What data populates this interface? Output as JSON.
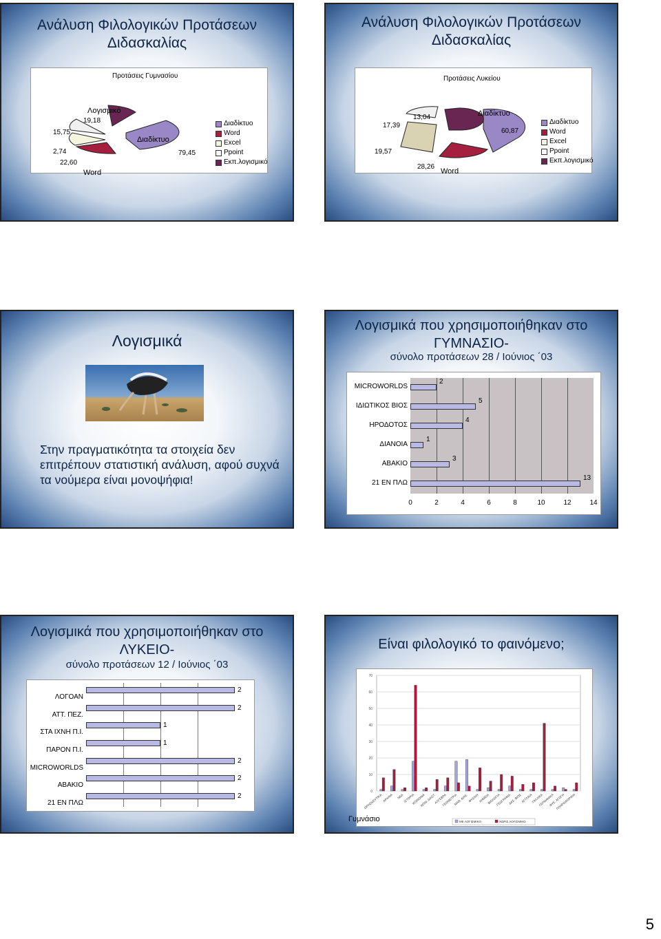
{
  "slide1": {
    "title": "Ανάλυση Φιλολογικών Προτάσεων Διδασκαλίας",
    "chart_title": "Προτάσεις Γυμνασίου",
    "chart_data": {
      "type": "pie",
      "categories": [
        "Διαδίκτυο",
        "Word",
        "Excel",
        "Ppoint",
        "Εκπ.λογισμικό"
      ],
      "values": [
        79.45,
        22.6,
        2.74,
        15.75,
        19.18
      ],
      "category_labels": [
        "Διαδίκτυο",
        "Word",
        "Λογισμικό"
      ]
    },
    "labels": {
      "a": "Λογισμικό",
      "b": "19,18",
      "c": "15,75",
      "d": "2,74",
      "e": "22,60",
      "f": "Word",
      "g": "Διαδίκτυο",
      "h": "79,45"
    },
    "legend": [
      "Διαδίκτυο",
      "Word",
      "Excel",
      "Ppoint",
      "Εκπ.λογισμικό"
    ]
  },
  "slide2": {
    "title": "Ανάλυση Φιλολογικών Προτάσεων Διδασκαλίας",
    "chart_title": "Προτάσεις Λυκείου",
    "chart_data": {
      "type": "pie",
      "categories": [
        "Διαδίκτυο",
        "Word",
        "Excel",
        "Ppoint",
        "Εκπ.λογισμικό"
      ],
      "values": [
        60.87,
        28.26,
        19.57,
        17.39,
        13.04
      ]
    },
    "labels": {
      "a": "17,39",
      "b": "13,04",
      "c": "Διαδίκτυο",
      "d": "60,87",
      "e": "19,57",
      "f": "28,26",
      "g": "Word"
    },
    "legend": [
      "Διαδίκτυο",
      "Word",
      "Excel",
      "Ppoint",
      "Εκπ.λογισμικό"
    ]
  },
  "slide3": {
    "title": "Λογισμικά",
    "body": "Στην πραγματικότητα τα στοιχεία δεν επιτρέπουν στατιστική ανάλυση, αφού συχνά τα νούμερα είναι μονοψήφια!"
  },
  "slide4": {
    "title": "Λογισμικά που χρησιμοποιήθηκαν στο ΓΥΜΝΑΣΙΟ-",
    "subtitle": "σύνολο προτάσεων 28 / Ιούνιος ΄03",
    "chart_data": {
      "type": "bar",
      "orientation": "horizontal",
      "categories": [
        "MICROWORLDS",
        "ΙΔΙΩΤΙΚΟΣ ΒΙΟΣ",
        "ΗΡΟΔΟΤΟΣ",
        "ΔΙΑΝΟΙΑ",
        "ΑΒΑΚΙΟ",
        "21 ΕΝ ΠΛΩ"
      ],
      "values": [
        2,
        5,
        4,
        1,
        3,
        13
      ],
      "xlim": [
        0,
        14
      ],
      "ticks": [
        "0",
        "2",
        "4",
        "6",
        "8",
        "10",
        "12",
        "14"
      ]
    }
  },
  "slide5": {
    "title": "Λογισμικά που χρησιμοποιήθηκαν στο ΛΥΚΕΙΟ-",
    "subtitle": "σύνολο προτάσεων 12 / Ιούνιος ΄03",
    "chart_data": {
      "type": "bar",
      "orientation": "horizontal",
      "categories": [
        "ΛΟΓΟΑΝ",
        "ΑΤΤ. ΠΕΖ.",
        "ΣΤΑ ΙΧΝΗ Π.Ι.",
        "ΠΑΡΟΝ Π.Ι.",
        "MICROWORLDS",
        "ΑΒΑΚΙΟ",
        "21 ΕΝ ΠΛΩ"
      ],
      "values": [
        2,
        2,
        1,
        1,
        2,
        2,
        2
      ],
      "xlim": [
        0,
        2
      ]
    }
  },
  "slide6": {
    "title": "Είναι φιλολογικό το φαινόμενο;",
    "corner_label": "Γυμνάσιο",
    "chart_data": {
      "type": "bar",
      "yticks": [
        "0",
        "10",
        "20",
        "30",
        "40",
        "50",
        "60",
        "70"
      ],
      "ylim": [
        0,
        70
      ],
      "categories": [
        "ΘΡΗΣΚΕΥΤΙΚΑ",
        "ΑΡΧΑΙΑ",
        "ΝΕΑ",
        "ΙΣΤΟΡΙΑ",
        "ΚΟΙΝΩΝΙΑ",
        "ΚΟΙΝ. ΔΙΑΣΤ.",
        "ΑΛΓΕΒΡΑ",
        "ΓΕΩΜΕΤΡΙΑ",
        "ΜΑΘ. ΔΙΑΣ.",
        "ΦΥΣΙΚΗ",
        "ΧΗΜΕΙΑ",
        "ΒΙΟΛΟΓΙΑ",
        "ΓΕΩΓΡΑΦΙΑ",
        "ΔΑΣ. ΒΙΟΣ",
        "ΑΓΓΛΙΚΑ",
        "ΓΑΛΛΙΚΑ",
        "ΓΕΡΜΑΝΙΚΑ",
        "ΦΥΣ. ΑΓΩΓΗ",
        "ΠΛΗΡΟΦΟΡΙΚΗ"
      ],
      "series": [
        {
          "name": "ΜΕ ΛΟΓΙΣΜΙΚΟ",
          "values": [
            1,
            3,
            1,
            18,
            1,
            1,
            3,
            18,
            19,
            1,
            2,
            1,
            3,
            1,
            1,
            1,
            1,
            2,
            1
          ]
        },
        {
          "name": "ΧΩΡΙΣ ΛΟΓΙΣΜΙΚΟ",
          "values": [
            8,
            13,
            2,
            64,
            2,
            7,
            8,
            5,
            3,
            14,
            6,
            10,
            9,
            4,
            5,
            41,
            3,
            1,
            5
          ]
        }
      ]
    }
  },
  "page_number": "5"
}
